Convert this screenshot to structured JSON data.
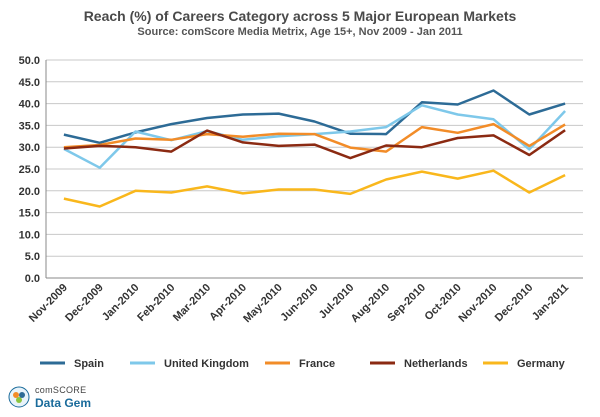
{
  "chart_data": {
    "type": "line",
    "title": "Reach (%) of Careers Category across 5 Major European Markets",
    "subtitle": "Source: comScore Media Metrix, Age 15+, Nov 2009 - Jan 2011",
    "xlabel": "",
    "ylabel": "",
    "ylim": [
      0,
      50
    ],
    "y_ticks": [
      "0.0",
      "5.0",
      "10.0",
      "15.0",
      "20.0",
      "25.0",
      "30.0",
      "35.0",
      "40.0",
      "45.0",
      "50.0"
    ],
    "grid": true,
    "legend_position": "bottom",
    "categories": [
      "Nov-2009",
      "Dec-2009",
      "Jan-2010",
      "Feb-2010",
      "Mar-2010",
      "Apr-2010",
      "May-2010",
      "Jun-2010",
      "Jul-2010",
      "Aug-2010",
      "Sep-2010",
      "Oct-2010",
      "Nov-2010",
      "Dec-2010",
      "Jan-2011"
    ],
    "series": [
      {
        "name": "Spain",
        "color": "#2d6b96",
        "values": [
          32.9,
          31.0,
          33.4,
          35.3,
          36.7,
          37.5,
          37.7,
          35.9,
          33.1,
          33.0,
          40.3,
          39.8,
          43.0,
          37.5,
          40.0
        ]
      },
      {
        "name": "United Kingdom",
        "color": "#7ec8ea",
        "values": [
          29.6,
          25.3,
          33.6,
          31.6,
          33.7,
          31.7,
          32.5,
          33.0,
          33.6,
          34.6,
          39.6,
          37.5,
          36.4,
          29.5,
          38.3
        ]
      },
      {
        "name": "France",
        "color": "#f28c28",
        "values": [
          30.0,
          30.5,
          32.0,
          31.7,
          33.0,
          32.4,
          33.1,
          33.0,
          29.9,
          29.0,
          34.6,
          33.3,
          35.3,
          30.3,
          35.2
        ]
      },
      {
        "name": "Netherlands",
        "color": "#8b2a12",
        "values": [
          29.7,
          30.3,
          30.0,
          29.0,
          33.8,
          31.1,
          30.3,
          30.6,
          27.5,
          30.4,
          30.0,
          32.1,
          32.7,
          28.2,
          33.9
        ]
      },
      {
        "name": "Germany",
        "color": "#f9b71c",
        "values": [
          18.2,
          16.4,
          20.0,
          19.6,
          21.0,
          19.4,
          20.3,
          20.3,
          19.3,
          22.6,
          24.4,
          22.8,
          24.6,
          19.6,
          23.6
        ]
      }
    ]
  },
  "branding": {
    "line1": "comSCORE",
    "line2": "Data Gem"
  }
}
